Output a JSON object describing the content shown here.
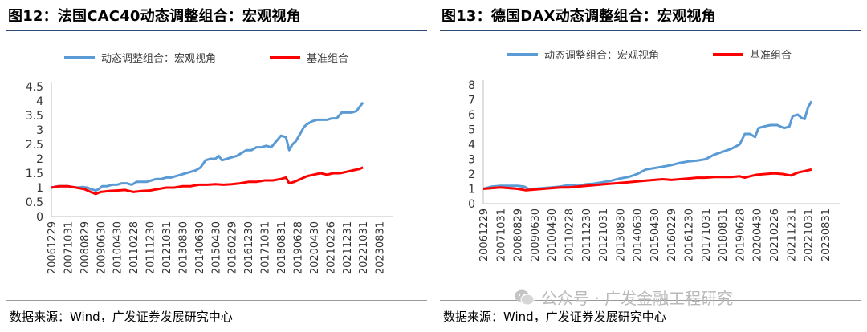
{
  "figures": [
    {
      "title": "图12：法国CAC40动态调整组合：宏观视角",
      "source": "数据来源：Wind，广发证券发展研究中心"
    },
    {
      "title": "图13：德国DAX动态调整组合：宏观视角",
      "source": "数据来源：Wind，广发证券发展研究中心"
    }
  ],
  "watermark": {
    "text": "公众号 · 广发金融工程研究",
    "icon": "wechat-icon"
  },
  "colors": {
    "dynamic": "#5b9bd5",
    "benchmark": "#ff0000",
    "axis": "#bfbfbf",
    "title_rule": "#2b4a78"
  },
  "chart_data": [
    {
      "type": "line",
      "title": "",
      "xlabel": "",
      "ylabel": "",
      "ylim": [
        0,
        4.5
      ],
      "yticks": [
        "0",
        "0.5",
        "1",
        "1.5",
        "2",
        "2.5",
        "3",
        "3.5",
        "4",
        "4.5"
      ],
      "x_tick_labels": [
        "20061229",
        "20071031",
        "20080829",
        "20090630",
        "20100430",
        "20110228",
        "20111230",
        "20121031",
        "20130830",
        "20140630",
        "20150430",
        "20160229",
        "20161230",
        "20171031",
        "20180831",
        "20190628",
        "20200430",
        "20210226",
        "20211231",
        "20221031",
        "20230831"
      ],
      "grid": false,
      "legend": "top",
      "series": [
        {
          "name": "动态调整组合：宏观视角",
          "color": "#5b9bd5",
          "points": [
            [
              0,
              1.0
            ],
            [
              0.4,
              1.05
            ],
            [
              0.7,
              1.05
            ],
            [
              1.0,
              1.05
            ],
            [
              1.3,
              1.02
            ],
            [
              1.6,
              1.0
            ],
            [
              1.9,
              1.02
            ],
            [
              2.2,
              1.0
            ],
            [
              2.4,
              0.95
            ],
            [
              2.7,
              0.9
            ],
            [
              2.9,
              0.95
            ],
            [
              3.1,
              1.05
            ],
            [
              3.4,
              1.05
            ],
            [
              3.7,
              1.1
            ],
            [
              4.0,
              1.1
            ],
            [
              4.3,
              1.15
            ],
            [
              4.6,
              1.15
            ],
            [
              4.9,
              1.1
            ],
            [
              5.2,
              1.2
            ],
            [
              5.5,
              1.2
            ],
            [
              5.8,
              1.2
            ],
            [
              6.1,
              1.25
            ],
            [
              6.4,
              1.3
            ],
            [
              6.7,
              1.3
            ],
            [
              7.0,
              1.35
            ],
            [
              7.3,
              1.35
            ],
            [
              7.6,
              1.4
            ],
            [
              7.9,
              1.45
            ],
            [
              8.2,
              1.5
            ],
            [
              8.5,
              1.55
            ],
            [
              8.8,
              1.6
            ],
            [
              9.1,
              1.7
            ],
            [
              9.4,
              1.95
            ],
            [
              9.7,
              2.0
            ],
            [
              10.0,
              2.0
            ],
            [
              10.2,
              2.1
            ],
            [
              10.4,
              1.95
            ],
            [
              10.7,
              2.0
            ],
            [
              11.0,
              2.05
            ],
            [
              11.3,
              2.1
            ],
            [
              11.6,
              2.2
            ],
            [
              11.9,
              2.3
            ],
            [
              12.2,
              2.3
            ],
            [
              12.5,
              2.4
            ],
            [
              12.8,
              2.4
            ],
            [
              13.1,
              2.45
            ],
            [
              13.4,
              2.4
            ],
            [
              13.7,
              2.6
            ],
            [
              14.0,
              2.8
            ],
            [
              14.3,
              2.75
            ],
            [
              14.5,
              2.3
            ],
            [
              14.7,
              2.5
            ],
            [
              14.9,
              2.6
            ],
            [
              15.2,
              2.9
            ],
            [
              15.4,
              3.1
            ],
            [
              15.6,
              3.2
            ],
            [
              15.9,
              3.3
            ],
            [
              16.2,
              3.35
            ],
            [
              16.5,
              3.35
            ],
            [
              16.8,
              3.35
            ],
            [
              17.1,
              3.4
            ],
            [
              17.4,
              3.4
            ],
            [
              17.7,
              3.6
            ],
            [
              18.0,
              3.6
            ],
            [
              18.3,
              3.6
            ],
            [
              18.6,
              3.65
            ],
            [
              18.8,
              3.8
            ],
            [
              19.0,
              3.95
            ]
          ]
        },
        {
          "name": "基准组合",
          "color": "#ff0000",
          "points": [
            [
              0,
              1.0
            ],
            [
              0.5,
              1.05
            ],
            [
              1.0,
              1.05
            ],
            [
              1.5,
              1.0
            ],
            [
              2.0,
              0.95
            ],
            [
              2.4,
              0.85
            ],
            [
              2.7,
              0.78
            ],
            [
              3.0,
              0.85
            ],
            [
              3.5,
              0.88
            ],
            [
              4.0,
              0.9
            ],
            [
              4.5,
              0.92
            ],
            [
              5.0,
              0.85
            ],
            [
              5.5,
              0.88
            ],
            [
              6.0,
              0.9
            ],
            [
              6.5,
              0.95
            ],
            [
              7.0,
              1.0
            ],
            [
              7.5,
              1.0
            ],
            [
              8.0,
              1.05
            ],
            [
              8.5,
              1.05
            ],
            [
              9.0,
              1.1
            ],
            [
              9.5,
              1.1
            ],
            [
              10.0,
              1.12
            ],
            [
              10.5,
              1.1
            ],
            [
              11.0,
              1.12
            ],
            [
              11.5,
              1.15
            ],
            [
              12.0,
              1.2
            ],
            [
              12.5,
              1.2
            ],
            [
              13.0,
              1.25
            ],
            [
              13.5,
              1.25
            ],
            [
              14.0,
              1.3
            ],
            [
              14.3,
              1.35
            ],
            [
              14.5,
              1.15
            ],
            [
              14.8,
              1.2
            ],
            [
              15.2,
              1.3
            ],
            [
              15.6,
              1.4
            ],
            [
              16.0,
              1.45
            ],
            [
              16.4,
              1.5
            ],
            [
              16.8,
              1.45
            ],
            [
              17.2,
              1.5
            ],
            [
              17.6,
              1.5
            ],
            [
              18.0,
              1.55
            ],
            [
              18.4,
              1.6
            ],
            [
              18.8,
              1.65
            ],
            [
              19.0,
              1.7
            ]
          ]
        }
      ]
    },
    {
      "type": "line",
      "title": "",
      "xlabel": "",
      "ylabel": "",
      "ylim": [
        0,
        8
      ],
      "yticks": [
        "0",
        "1",
        "2",
        "3",
        "4",
        "5",
        "6",
        "7",
        "8"
      ],
      "x_tick_labels": [
        "20061229",
        "20071031",
        "20080829",
        "20090630",
        "20100430",
        "20110228",
        "20111230",
        "20121031",
        "20130830",
        "20140630",
        "20150430",
        "20160229",
        "20161230",
        "20171031",
        "20180831",
        "20190628",
        "20200430",
        "20210226",
        "20211231",
        "20221031",
        "20230831"
      ],
      "grid": false,
      "legend": "top",
      "series": [
        {
          "name": "动态调整组合：宏观视角",
          "color": "#5b9bd5",
          "points": [
            [
              0,
              1.0
            ],
            [
              0.5,
              1.15
            ],
            [
              1.0,
              1.2
            ],
            [
              1.5,
              1.2
            ],
            [
              2.0,
              1.2
            ],
            [
              2.4,
              1.15
            ],
            [
              2.7,
              0.95
            ],
            [
              3.0,
              1.0
            ],
            [
              3.5,
              1.05
            ],
            [
              4.0,
              1.1
            ],
            [
              4.5,
              1.15
            ],
            [
              5.0,
              1.25
            ],
            [
              5.5,
              1.2
            ],
            [
              6.0,
              1.3
            ],
            [
              6.5,
              1.35
            ],
            [
              7.0,
              1.45
            ],
            [
              7.5,
              1.55
            ],
            [
              8.0,
              1.7
            ],
            [
              8.5,
              1.8
            ],
            [
              9.0,
              2.0
            ],
            [
              9.5,
              2.3
            ],
            [
              10.0,
              2.4
            ],
            [
              10.5,
              2.5
            ],
            [
              11.0,
              2.6
            ],
            [
              11.5,
              2.75
            ],
            [
              12.0,
              2.85
            ],
            [
              12.5,
              2.9
            ],
            [
              13.0,
              3.0
            ],
            [
              13.5,
              3.3
            ],
            [
              14.0,
              3.5
            ],
            [
              14.5,
              3.7
            ],
            [
              15.0,
              4.0
            ],
            [
              15.3,
              4.7
            ],
            [
              15.6,
              4.7
            ],
            [
              15.9,
              4.5
            ],
            [
              16.1,
              5.1
            ],
            [
              16.4,
              5.2
            ],
            [
              16.8,
              5.3
            ],
            [
              17.2,
              5.3
            ],
            [
              17.6,
              5.1
            ],
            [
              17.9,
              5.2
            ],
            [
              18.1,
              5.9
            ],
            [
              18.4,
              6.0
            ],
            [
              18.6,
              5.8
            ],
            [
              18.8,
              5.7
            ],
            [
              19.0,
              6.5
            ],
            [
              19.2,
              6.9
            ]
          ]
        },
        {
          "name": "基准组合",
          "color": "#ff0000",
          "points": [
            [
              0,
              1.0
            ],
            [
              0.5,
              1.05
            ],
            [
              1.0,
              1.1
            ],
            [
              1.5,
              1.05
            ],
            [
              2.0,
              1.0
            ],
            [
              2.5,
              0.9
            ],
            [
              3.0,
              0.95
            ],
            [
              3.5,
              1.0
            ],
            [
              4.0,
              1.05
            ],
            [
              4.5,
              1.1
            ],
            [
              5.0,
              1.1
            ],
            [
              5.5,
              1.15
            ],
            [
              6.0,
              1.2
            ],
            [
              6.5,
              1.25
            ],
            [
              7.0,
              1.3
            ],
            [
              7.5,
              1.35
            ],
            [
              8.0,
              1.4
            ],
            [
              8.5,
              1.45
            ],
            [
              9.0,
              1.5
            ],
            [
              9.5,
              1.55
            ],
            [
              10.0,
              1.6
            ],
            [
              10.5,
              1.65
            ],
            [
              11.0,
              1.6
            ],
            [
              11.5,
              1.65
            ],
            [
              12.0,
              1.7
            ],
            [
              12.5,
              1.75
            ],
            [
              13.0,
              1.75
            ],
            [
              13.5,
              1.8
            ],
            [
              14.0,
              1.8
            ],
            [
              14.5,
              1.8
            ],
            [
              15.0,
              1.85
            ],
            [
              15.3,
              1.75
            ],
            [
              15.6,
              1.85
            ],
            [
              16.0,
              1.95
            ],
            [
              16.5,
              2.0
            ],
            [
              17.0,
              2.05
            ],
            [
              17.5,
              2.0
            ],
            [
              18.0,
              1.9
            ],
            [
              18.4,
              2.1
            ],
            [
              18.8,
              2.2
            ],
            [
              19.2,
              2.3
            ]
          ]
        }
      ]
    }
  ]
}
